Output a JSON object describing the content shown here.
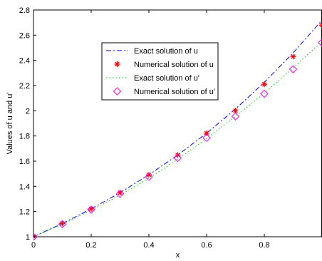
{
  "chart_data": {
    "type": "line",
    "title": "",
    "xlabel": "x",
    "ylabel": "Values of u and u'",
    "xlim": [
      0,
      1
    ],
    "ylim": [
      1,
      2.8
    ],
    "xticks": [
      0,
      0.2,
      0.4,
      0.6,
      0.8
    ],
    "xtick_labels": [
      "0",
      "0.2",
      "0.4",
      "0.6",
      "0.8"
    ],
    "yticks": [
      1,
      1.2,
      1.4,
      1.6,
      1.8,
      2,
      2.2,
      2.4,
      2.6,
      2.8
    ],
    "ytick_labels": [
      "1",
      "1.2",
      "1.4",
      "1.6",
      "1.8",
      "2",
      "2.2",
      "2.4",
      "2.6",
      "2.8"
    ],
    "grid": false,
    "legend_position": "upper-center",
    "x": [
      0,
      0.1,
      0.2,
      0.3,
      0.4,
      0.5,
      0.6,
      0.7,
      0.8,
      0.9,
      1.0
    ],
    "series": [
      {
        "name": "Exact solution of u",
        "style": "dash-dot",
        "color": "#0000ff",
        "values": [
          1.0,
          1.1052,
          1.2214,
          1.3499,
          1.4918,
          1.6487,
          1.8221,
          2.0138,
          2.2255,
          2.4596,
          2.7183
        ]
      },
      {
        "name": "Numerical solution of u",
        "style": "asterisk-marker",
        "color": "#ff0000",
        "values": [
          1.0,
          1.105,
          1.221,
          1.35,
          1.492,
          1.649,
          1.822,
          2.0,
          2.21,
          2.43,
          2.68
        ]
      },
      {
        "name": "Exact solution of u'",
        "style": "dotted",
        "color": "#00cc00",
        "values": [
          1.0,
          1.1,
          1.21,
          1.33,
          1.465,
          1.615,
          1.78,
          1.955,
          2.14,
          2.34,
          2.55
        ]
      },
      {
        "name": "Numerical solution of u'",
        "style": "diamond-marker",
        "color": "#ff00ff",
        "values": [
          1.0,
          1.1,
          1.215,
          1.34,
          1.475,
          1.625,
          1.785,
          1.955,
          2.135,
          2.33,
          2.54
        ]
      }
    ]
  }
}
